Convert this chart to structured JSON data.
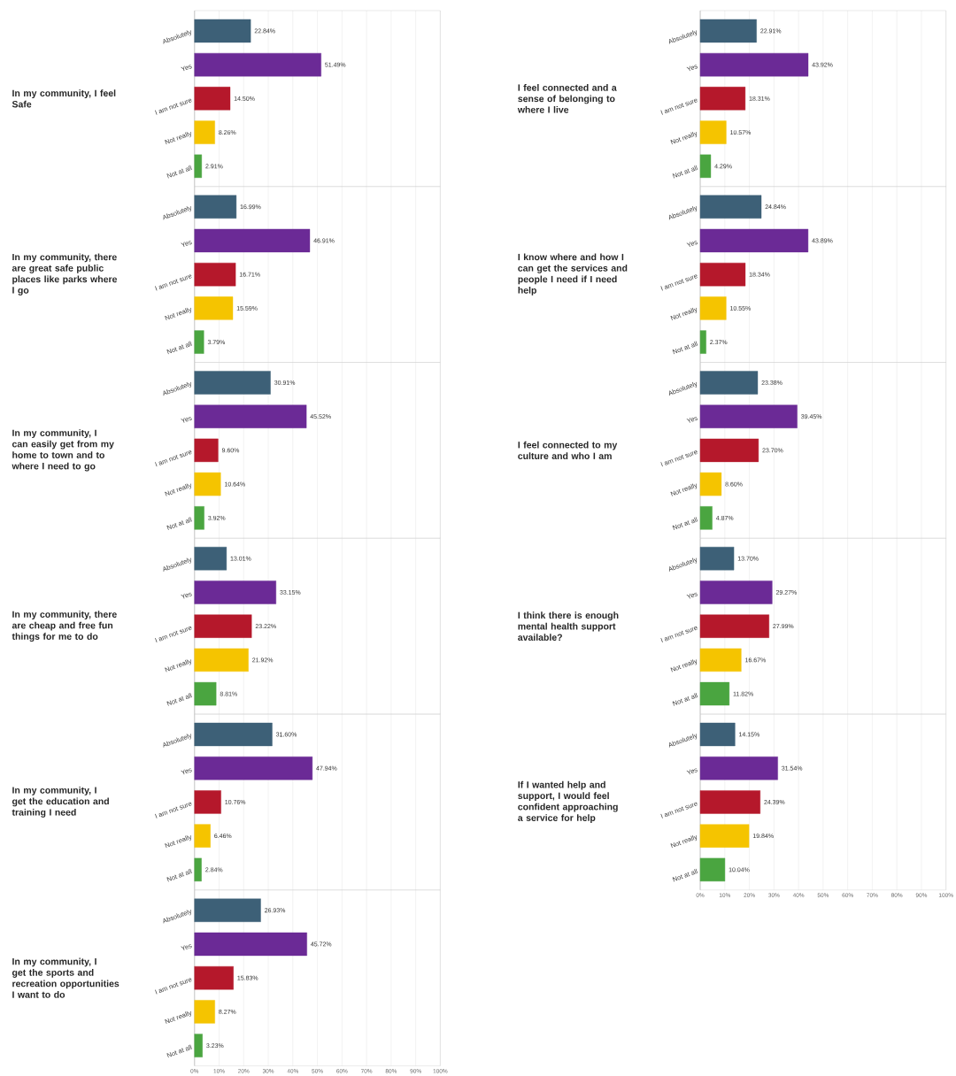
{
  "chart_data": [
    {
      "type": "bar",
      "orientation": "horizontal",
      "title": "In my community, I feel Safe",
      "categories": [
        "Absolutely",
        "Yes",
        "I am not sure",
        "Not really",
        "Not at all"
      ],
      "values": [
        22.84,
        51.49,
        14.5,
        8.26,
        2.91
      ],
      "value_labels": [
        "22.84%",
        "51.49%",
        "14.50%",
        "8.26%",
        "2.91%"
      ],
      "colors": [
        "#3d6077",
        "#6b2a96",
        "#b5182b",
        "#f5c400",
        "#4aa540"
      ],
      "xlim": [
        0,
        100
      ],
      "xticks": [
        0,
        10,
        20,
        30,
        40,
        50,
        60,
        70,
        80,
        90,
        100
      ],
      "grid": "x",
      "tick_labels": "y"
    },
    {
      "type": "bar",
      "orientation": "horizontal",
      "title": "In my community, there are great safe public places like parks where I go",
      "categories": [
        "Absolutely",
        "Yes",
        "I am not sure",
        "Not really",
        "Not at all"
      ],
      "values": [
        16.99,
        46.91,
        16.71,
        15.59,
        3.79
      ],
      "value_labels": [
        "16.99%",
        "46.91%",
        "16.71%",
        "15.59%",
        "3.79%"
      ],
      "colors": [
        "#3d6077",
        "#6b2a96",
        "#b5182b",
        "#f5c400",
        "#4aa540"
      ],
      "xlim": [
        0,
        100
      ],
      "xticks": [
        0,
        10,
        20,
        30,
        40,
        50,
        60,
        70,
        80,
        90,
        100
      ],
      "grid": "x",
      "tick_labels": "y"
    },
    {
      "type": "bar",
      "orientation": "horizontal",
      "title": "In my community, I can easily get from my home to town and to where I need to go",
      "categories": [
        "Absolutely",
        "Yes",
        "I am not sure",
        "Not really",
        "Not at all"
      ],
      "values": [
        30.91,
        45.52,
        9.6,
        10.64,
        3.92
      ],
      "value_labels": [
        "30.91%",
        "45.52%",
        "9.60%",
        "10.64%",
        "3.92%"
      ],
      "colors": [
        "#3d6077",
        "#6b2a96",
        "#b5182b",
        "#f5c400",
        "#4aa540"
      ],
      "xlim": [
        0,
        100
      ],
      "xticks": [
        0,
        10,
        20,
        30,
        40,
        50,
        60,
        70,
        80,
        90,
        100
      ],
      "grid": "x",
      "tick_labels": "y"
    },
    {
      "type": "bar",
      "orientation": "horizontal",
      "title": "In my community, there are cheap and free fun things for me to do",
      "categories": [
        "Absolutely",
        "Yes",
        "I am not sure",
        "Not really",
        "Not at all"
      ],
      "values": [
        13.01,
        33.15,
        23.22,
        21.92,
        8.81
      ],
      "value_labels": [
        "13.01%",
        "33.15%",
        "23.22%",
        "21.92%",
        "8.81%"
      ],
      "colors": [
        "#3d6077",
        "#6b2a96",
        "#b5182b",
        "#f5c400",
        "#4aa540"
      ],
      "xlim": [
        0,
        100
      ],
      "xticks": [
        0,
        10,
        20,
        30,
        40,
        50,
        60,
        70,
        80,
        90,
        100
      ],
      "grid": "x",
      "tick_labels": "y"
    },
    {
      "type": "bar",
      "orientation": "horizontal",
      "title": "In my community, I get the education and training I need",
      "categories": [
        "Absolutely",
        "Yes",
        "I am not sure",
        "Not really",
        "Not at all"
      ],
      "values": [
        31.6,
        47.94,
        10.76,
        6.46,
        2.84
      ],
      "value_labels": [
        "31.60%",
        "47.94%",
        "10.76%",
        "6.46%",
        "2.84%"
      ],
      "colors": [
        "#3d6077",
        "#6b2a96",
        "#b5182b",
        "#f5c400",
        "#4aa540"
      ],
      "xlim": [
        0,
        100
      ],
      "xticks": [
        0,
        10,
        20,
        30,
        40,
        50,
        60,
        70,
        80,
        90,
        100
      ],
      "grid": "x",
      "tick_labels": "y"
    },
    {
      "type": "bar",
      "orientation": "horizontal",
      "title": "In my community, I get the sports and recreation opportunities I want to do",
      "categories": [
        "Absolutely",
        "Yes",
        "I am not sure",
        "Not really",
        "Not at all"
      ],
      "values": [
        26.93,
        45.72,
        15.83,
        8.27,
        3.23
      ],
      "value_labels": [
        "26.93%",
        "45.72%",
        "15.83%",
        "8.27%",
        "3.23%"
      ],
      "colors": [
        "#3d6077",
        "#6b2a96",
        "#b5182b",
        "#f5c400",
        "#4aa540"
      ],
      "xlim": [
        0,
        100
      ],
      "xticks": [
        {
          "value": 0,
          "label": "0%"
        },
        {
          "value": 10,
          "label": "10%"
        },
        {
          "value": 20,
          "label": "20%"
        },
        {
          "value": 30,
          "label": "30%"
        },
        {
          "value": 40,
          "label": "40%"
        },
        {
          "value": 50,
          "label": "50%"
        },
        {
          "value": 60,
          "label": "60%"
        },
        {
          "value": 70,
          "label": "70%"
        },
        {
          "value": 80,
          "label": "80%"
        },
        {
          "value": 90,
          "label": "90%"
        },
        {
          "value": 100,
          "label": "100%"
        }
      ],
      "grid": "x"
    },
    {
      "type": "bar",
      "orientation": "horizontal",
      "title": "I feel connected and a sense of belonging to where I live",
      "categories": [
        "Absolutely",
        "Yes",
        "I am not sure",
        "Not really",
        "Not at all"
      ],
      "values": [
        22.91,
        43.92,
        18.31,
        10.57,
        4.29
      ],
      "value_labels": [
        "22.91%",
        "43.92%",
        "18.31%",
        "10.57%",
        "4.29%"
      ],
      "colors": [
        "#3d6077",
        "#6b2a96",
        "#b5182b",
        "#f5c400",
        "#4aa540"
      ],
      "xlim": [
        0,
        100
      ],
      "xticks": [
        0,
        10,
        20,
        30,
        40,
        50,
        60,
        70,
        80,
        90,
        100
      ],
      "grid": "x",
      "tick_labels": "y"
    },
    {
      "type": "bar",
      "orientation": "horizontal",
      "title": "I know where and how I can get the services and people I need if I need help",
      "categories": [
        "Absolutely",
        "Yes",
        "I am not sure",
        "Not really",
        "Not at all"
      ],
      "values": [
        24.84,
        43.89,
        18.34,
        10.55,
        2.37
      ],
      "value_labels": [
        "24.84%",
        "43.89%",
        "18.34%",
        "10.55%",
        "2.37%"
      ],
      "colors": [
        "#3d6077",
        "#6b2a96",
        "#b5182b",
        "#f5c400",
        "#4aa540"
      ],
      "xlim": [
        0,
        100
      ],
      "xticks": [
        0,
        10,
        20,
        30,
        40,
        50,
        60,
        70,
        80,
        90,
        100
      ],
      "grid": "x",
      "tick_labels": "y"
    },
    {
      "type": "bar",
      "orientation": "horizontal",
      "title": "I feel connected to my culture and who I am",
      "categories": [
        "Absolutely",
        "Yes",
        "I am not sure",
        "Not really",
        "Not at all"
      ],
      "values": [
        23.38,
        39.45,
        23.7,
        8.6,
        4.87
      ],
      "value_labels": [
        "23.38%",
        "39.45%",
        "23.70%",
        "8.60%",
        "4.87%"
      ],
      "colors": [
        "#3d6077",
        "#6b2a96",
        "#b5182b",
        "#f5c400",
        "#4aa540"
      ],
      "xlim": [
        0,
        100
      ],
      "xticks": [
        0,
        10,
        20,
        30,
        40,
        50,
        60,
        70,
        80,
        90,
        100
      ],
      "grid": "x",
      "tick_labels": "y"
    },
    {
      "type": "bar",
      "orientation": "horizontal",
      "title": "I think there is enough mental health support available?",
      "categories": [
        "Absolutely",
        "Yes",
        "I am not sure",
        "Not really",
        "Not at all"
      ],
      "values": [
        13.7,
        29.27,
        27.99,
        16.67,
        11.82
      ],
      "value_labels": [
        "13.70%",
        "29.27%",
        "27.99%",
        "16.67%",
        "11.82%"
      ],
      "colors": [
        "#3d6077",
        "#6b2a96",
        "#b5182b",
        "#f5c400",
        "#4aa540"
      ],
      "xlim": [
        0,
        100
      ],
      "xticks": [
        0,
        10,
        20,
        30,
        40,
        50,
        60,
        70,
        80,
        90,
        100
      ],
      "grid": "x",
      "tick_labels": "y"
    },
    {
      "type": "bar",
      "orientation": "horizontal",
      "title": "If I wanted help and support, I would feel confident approaching a service for help",
      "categories": [
        "Absolutely",
        "Yes",
        "I am not sure",
        "Not really",
        "Not at all"
      ],
      "values": [
        14.15,
        31.54,
        24.39,
        19.84,
        10.04
      ],
      "value_labels": [
        "14.15%",
        "31.54%",
        "24.39%",
        "19.84%",
        "10.04%"
      ],
      "colors": [
        "#3d6077",
        "#6b2a96",
        "#b5182b",
        "#f5c400",
        "#4aa540"
      ],
      "xlim": [
        0,
        100
      ],
      "xticks": [
        {
          "value": 0,
          "label": "0%"
        },
        {
          "value": 10,
          "label": "10%"
        },
        {
          "value": 20,
          "label": "20%"
        },
        {
          "value": 30,
          "label": "30%"
        },
        {
          "value": 40,
          "label": "40%"
        },
        {
          "value": 50,
          "label": "50%"
        },
        {
          "value": 60,
          "label": "60%"
        },
        {
          "value": 70,
          "label": "70%"
        },
        {
          "value": 80,
          "label": "80%"
        },
        {
          "value": 90,
          "label": "90%"
        },
        {
          "value": 100,
          "label": "100%"
        }
      ],
      "grid": "x"
    }
  ]
}
